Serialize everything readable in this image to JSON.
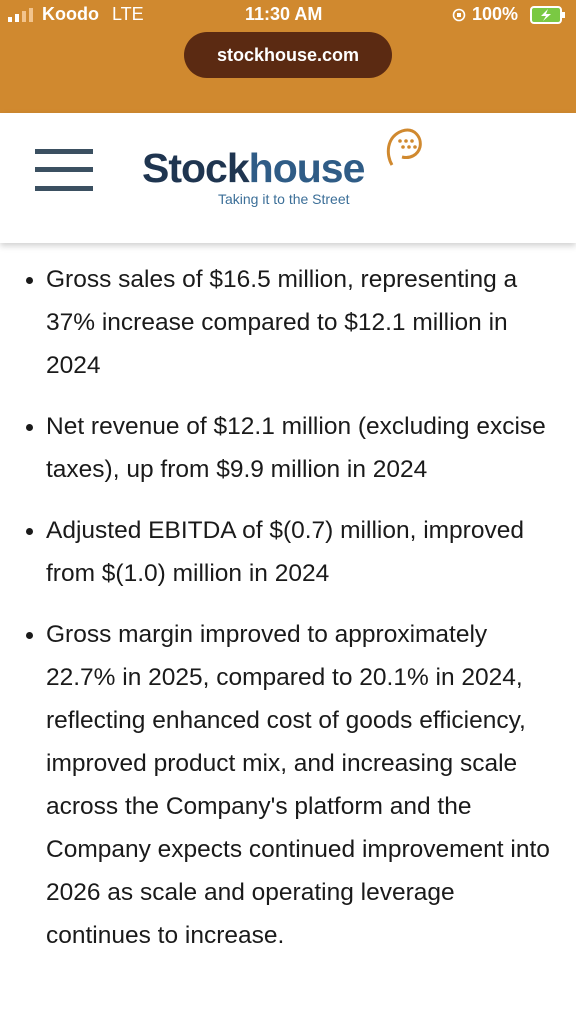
{
  "status_bar": {
    "carrier": "Koodo",
    "network": "LTE",
    "time": "11:30 AM",
    "battery": "100%"
  },
  "browser": {
    "url": "stockhouse.com"
  },
  "header": {
    "logo": {
      "name_parts": [
        "Stock",
        "house"
      ],
      "tagline": "Taking it to the Street"
    }
  },
  "article": {
    "bullets": [
      "Gross sales of $16.5 million, representing a 37% increase compared to $12.1 million in 2024",
      "Net revenue of $12.1 million (excluding excise taxes), up from $9.9 million in 2024",
      "Adjusted EBITDA of $(0.7) million, improved from $(1.0) million in 2024",
      "Gross margin improved to approximately 22.7% in 2025, compared to 20.1% in 2024, reflecting enhanced cost of goods efficiency, improved product mix, and increasing scale across the Company's platform and the Company expects continued improvement into 2026 as scale and operating leverage continues to increase."
    ]
  }
}
